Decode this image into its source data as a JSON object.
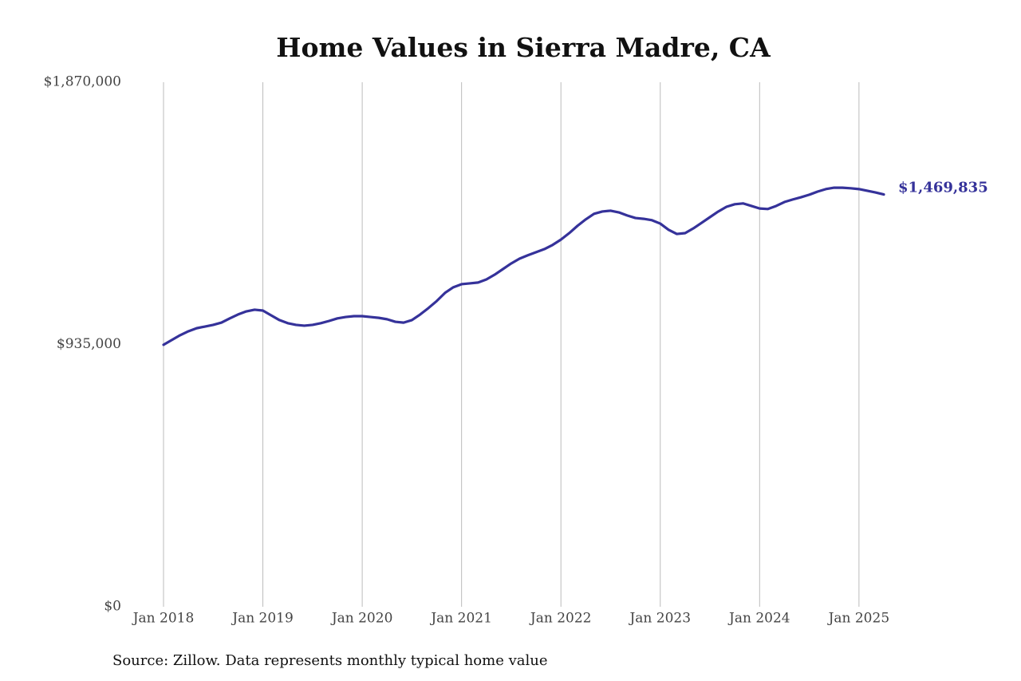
{
  "chart_data": {
    "type": "line",
    "title": "Home Values in Sierra Madre, CA",
    "source": "Source: Zillow. Data represents monthly typical home value",
    "x": [
      "2018-01",
      "2018-02",
      "2018-03",
      "2018-04",
      "2018-05",
      "2018-06",
      "2018-07",
      "2018-08",
      "2018-09",
      "2018-10",
      "2018-11",
      "2018-12",
      "2019-01",
      "2019-02",
      "2019-03",
      "2019-04",
      "2019-05",
      "2019-06",
      "2019-07",
      "2019-08",
      "2019-09",
      "2019-10",
      "2019-11",
      "2019-12",
      "2020-01",
      "2020-02",
      "2020-03",
      "2020-04",
      "2020-05",
      "2020-06",
      "2020-07",
      "2020-08",
      "2020-09",
      "2020-10",
      "2020-11",
      "2020-12",
      "2021-01",
      "2021-02",
      "2021-03",
      "2021-04",
      "2021-05",
      "2021-06",
      "2021-07",
      "2021-08",
      "2021-09",
      "2021-10",
      "2021-11",
      "2021-12",
      "2022-01",
      "2022-02",
      "2022-03",
      "2022-04",
      "2022-05",
      "2022-06",
      "2022-07",
      "2022-08",
      "2022-09",
      "2022-10",
      "2022-11",
      "2022-12",
      "2023-01",
      "2023-02",
      "2023-03",
      "2023-04",
      "2023-05",
      "2023-06",
      "2023-07",
      "2023-08",
      "2023-09",
      "2023-10",
      "2023-11",
      "2023-12",
      "2024-01",
      "2024-02",
      "2024-03",
      "2024-04",
      "2024-05",
      "2024-06",
      "2024-07",
      "2024-08",
      "2024-09",
      "2024-10",
      "2024-11",
      "2024-12",
      "2025-01",
      "2025-02",
      "2025-03",
      "2025-04"
    ],
    "series": [
      {
        "name": "Sierra Madre, CA",
        "color": "#35329a",
        "values": [
          934000,
          951000,
          968000,
          982000,
          993000,
          999000,
          1005000,
          1013000,
          1028000,
          1042000,
          1053000,
          1059000,
          1056000,
          1039000,
          1022000,
          1011000,
          1005000,
          1002000,
          1005000,
          1011000,
          1019000,
          1028000,
          1033000,
          1036000,
          1036000,
          1033000,
          1030000,
          1025000,
          1016000,
          1013000,
          1022000,
          1042000,
          1065000,
          1090000,
          1119000,
          1139000,
          1150000,
          1153000,
          1156000,
          1167000,
          1184000,
          1204000,
          1224000,
          1241000,
          1253000,
          1264000,
          1275000,
          1290000,
          1309000,
          1332000,
          1358000,
          1381000,
          1401000,
          1409000,
          1412000,
          1406000,
          1395000,
          1386000,
          1383000,
          1378000,
          1366000,
          1344000,
          1329000,
          1332000,
          1349000,
          1369000,
          1389000,
          1409000,
          1426000,
          1435000,
          1438000,
          1429000,
          1420000,
          1418000,
          1429000,
          1443000,
          1452000,
          1460000,
          1469000,
          1480000,
          1489000,
          1494000,
          1494000,
          1492000,
          1489000,
          1483000,
          1477000,
          1469835
        ],
        "value_labels": [
          null,
          null,
          null,
          null,
          null,
          null,
          null,
          null,
          null,
          null,
          null,
          null,
          null,
          null,
          null,
          null,
          null,
          null,
          null,
          null,
          null,
          null,
          null,
          null,
          null,
          null,
          null,
          null,
          null,
          null,
          null,
          null,
          null,
          null,
          null,
          null,
          null,
          null,
          null,
          null,
          null,
          null,
          null,
          null,
          null,
          null,
          null,
          null,
          null,
          null,
          null,
          null,
          null,
          null,
          null,
          null,
          null,
          null,
          null,
          null,
          null,
          null,
          null,
          null,
          null,
          null,
          null,
          null,
          null,
          null,
          null,
          null,
          null,
          null,
          null,
          null,
          null,
          null,
          null,
          null,
          null,
          null,
          null,
          null,
          null,
          null,
          null,
          "$1,469,835"
        ]
      }
    ],
    "xlim": [
      "2018-01",
      "2025-04"
    ],
    "xticks": [
      {
        "value": "2018-01",
        "label": "Jan 2018"
      },
      {
        "value": "2019-01",
        "label": "Jan 2019"
      },
      {
        "value": "2020-01",
        "label": "Jan 2020"
      },
      {
        "value": "2021-01",
        "label": "Jan 2021"
      },
      {
        "value": "2022-01",
        "label": "Jan 2022"
      },
      {
        "value": "2023-01",
        "label": "Jan 2023"
      },
      {
        "value": "2024-01",
        "label": "Jan 2024"
      },
      {
        "value": "2025-01",
        "label": "Jan 2025"
      }
    ],
    "ylim": [
      0,
      1870000
    ],
    "yticks": [
      {
        "value": 0,
        "label": "$0"
      },
      {
        "value": 935000,
        "label": "$935,000"
      },
      {
        "value": 1870000,
        "label": "$1,870,000"
      }
    ],
    "grid": "x"
  }
}
